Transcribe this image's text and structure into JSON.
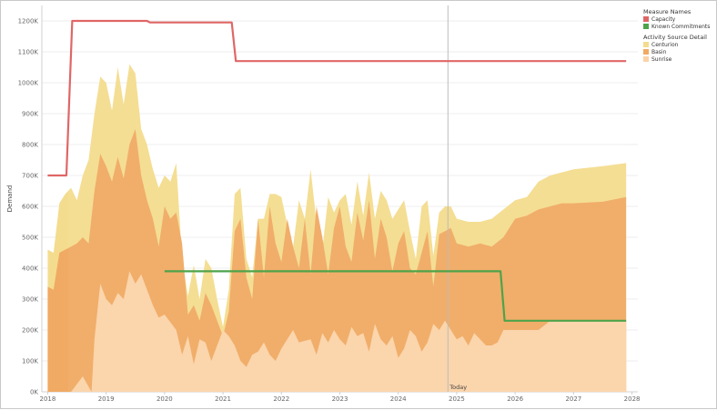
{
  "chart_data": {
    "type": "area",
    "ylabel": "Demand",
    "ylim": [
      0,
      1250000
    ],
    "xlim": [
      2017.9,
      2028.1
    ],
    "grid": true,
    "legend_position": "top-right",
    "y_ticks": [
      0,
      100000,
      200000,
      300000,
      400000,
      500000,
      600000,
      700000,
      800000,
      900000,
      1000000,
      1100000,
      1200000
    ],
    "y_tick_labels": [
      "0K",
      "100K",
      "200K",
      "300K",
      "400K",
      "500K",
      "600K",
      "700K",
      "800K",
      "900K",
      "1000K",
      "1100K",
      "1200K"
    ],
    "x_ticks": [
      2018,
      2019,
      2020,
      2021,
      2022,
      2023,
      2024,
      2025,
      2026,
      2027,
      2028
    ],
    "x_tick_labels": [
      "2018",
      "2019",
      "2020",
      "2021",
      "2022",
      "2023",
      "2024",
      "2025",
      "2026",
      "2027",
      "2028"
    ],
    "today": {
      "x": 2024.85,
      "label": "Today"
    },
    "legend": {
      "measure_names_title": "Measure Names",
      "measure_names": [
        {
          "name": "Capacity",
          "color": "#e06666"
        },
        {
          "name": "Known Commitments",
          "color": "#4ea34a"
        }
      ],
      "activity_title": "Activity Source Detail",
      "activity": [
        {
          "name": "Centurion",
          "color": "#f4dc8e"
        },
        {
          "name": "Basin",
          "color": "#f0aa63"
        },
        {
          "name": "Sunrise",
          "color": "#fbd3a8"
        }
      ]
    },
    "area_series": [
      {
        "name": "Sunrise",
        "color": "#fbd3a8",
        "x": [
          2018.0,
          2018.4,
          2018.6,
          2018.75,
          2018.8,
          2018.9,
          2019.0,
          2019.1,
          2019.2,
          2019.3,
          2019.4,
          2019.5,
          2019.6,
          2019.7,
          2019.8,
          2019.9,
          2020.0,
          2020.2,
          2020.3,
          2020.4,
          2020.5,
          2020.6,
          2020.7,
          2020.8,
          2020.9,
          2021.0,
          2021.1,
          2021.2,
          2021.3,
          2021.4,
          2021.5,
          2021.6,
          2021.7,
          2021.8,
          2021.9,
          2022.0,
          2022.2,
          2022.3,
          2022.5,
          2022.6,
          2022.7,
          2022.8,
          2022.9,
          2023.0,
          2023.1,
          2023.2,
          2023.3,
          2023.4,
          2023.5,
          2023.6,
          2023.7,
          2023.8,
          2023.9,
          2024.0,
          2024.1,
          2024.2,
          2024.3,
          2024.4,
          2024.5,
          2024.6,
          2024.7,
          2024.8,
          2024.9,
          2025.0,
          2025.1,
          2025.2,
          2025.3,
          2025.5,
          2025.6,
          2025.7,
          2025.8,
          2026.0,
          2026.2,
          2026.4,
          2026.6,
          2026.8,
          2027.0,
          2027.5,
          2027.9
        ],
        "y": [
          0,
          0,
          50,
          0,
          170,
          350,
          300,
          280,
          320,
          300,
          390,
          350,
          380,
          330,
          280,
          240,
          250,
          200,
          120,
          180,
          90,
          170,
          160,
          100,
          150,
          200,
          180,
          150,
          100,
          80,
          120,
          130,
          160,
          120,
          100,
          140,
          200,
          160,
          170,
          120,
          190,
          160,
          200,
          170,
          150,
          210,
          180,
          190,
          130,
          220,
          170,
          150,
          180,
          110,
          140,
          200,
          180,
          130,
          160,
          220,
          200,
          230,
          200,
          170,
          180,
          150,
          190,
          150,
          150,
          160,
          200,
          200,
          200,
          200,
          230,
          230,
          230,
          230,
          230
        ]
      },
      {
        "name": "Basin",
        "color": "#f0aa63",
        "x": [
          2018.0,
          2018.1,
          2018.2,
          2018.3,
          2018.4,
          2018.5,
          2018.6,
          2018.7,
          2018.8,
          2018.9,
          2019.0,
          2019.1,
          2019.2,
          2019.3,
          2019.4,
          2019.5,
          2019.6,
          2019.7,
          2019.8,
          2019.9,
          2020.0,
          2020.1,
          2020.2,
          2020.3,
          2020.4,
          2020.5,
          2020.6,
          2020.7,
          2020.8,
          2020.9,
          2021.0,
          2021.1,
          2021.2,
          2021.3,
          2021.4,
          2021.5,
          2021.6,
          2021.7,
          2021.8,
          2021.9,
          2022.0,
          2022.1,
          2022.2,
          2022.3,
          2022.4,
          2022.5,
          2022.6,
          2022.7,
          2022.8,
          2022.9,
          2023.0,
          2023.1,
          2023.2,
          2023.3,
          2023.4,
          2023.5,
          2023.6,
          2023.7,
          2023.8,
          2023.9,
          2024.0,
          2024.1,
          2024.2,
          2024.3,
          2024.4,
          2024.5,
          2024.6,
          2024.7,
          2024.8,
          2024.9,
          2025.0,
          2025.2,
          2025.4,
          2025.6,
          2025.8,
          2026.0,
          2026.2,
          2026.4,
          2026.6,
          2026.8,
          2027.0,
          2027.5,
          2027.9
        ],
        "y": [
          340,
          330,
          450,
          460,
          470,
          480,
          500,
          480,
          650,
          770,
          730,
          680,
          760,
          690,
          800,
          850,
          700,
          620,
          560,
          470,
          600,
          560,
          580,
          480,
          250,
          280,
          230,
          320,
          280,
          230,
          180,
          260,
          520,
          560,
          370,
          300,
          560,
          370,
          600,
          480,
          420,
          560,
          470,
          400,
          560,
          380,
          600,
          500,
          380,
          530,
          600,
          470,
          420,
          580,
          490,
          620,
          430,
          560,
          500,
          390,
          480,
          520,
          400,
          380,
          450,
          520,
          340,
          510,
          520,
          530,
          480,
          470,
          480,
          470,
          500,
          560,
          570,
          590,
          600,
          610,
          610,
          615,
          630
        ]
      },
      {
        "name": "Centurion",
        "color": "#f4dc8e",
        "x": [
          2018.0,
          2018.1,
          2018.2,
          2018.3,
          2018.4,
          2018.5,
          2018.6,
          2018.7,
          2018.8,
          2018.9,
          2019.0,
          2019.1,
          2019.2,
          2019.3,
          2019.4,
          2019.5,
          2019.6,
          2019.7,
          2019.8,
          2019.9,
          2020.0,
          2020.1,
          2020.2,
          2020.3,
          2020.4,
          2020.5,
          2020.6,
          2020.7,
          2020.8,
          2020.9,
          2021.0,
          2021.1,
          2021.2,
          2021.3,
          2021.4,
          2021.5,
          2021.6,
          2021.7,
          2021.8,
          2021.9,
          2022.0,
          2022.1,
          2022.2,
          2022.3,
          2022.4,
          2022.5,
          2022.6,
          2022.7,
          2022.8,
          2022.9,
          2023.0,
          2023.1,
          2023.2,
          2023.3,
          2023.4,
          2023.5,
          2023.6,
          2023.7,
          2023.8,
          2023.9,
          2024.0,
          2024.1,
          2024.2,
          2024.3,
          2024.4,
          2024.5,
          2024.6,
          2024.7,
          2024.8,
          2024.9,
          2025.0,
          2025.2,
          2025.4,
          2025.6,
          2025.8,
          2026.0,
          2026.2,
          2026.4,
          2026.6,
          2026.8,
          2027.0,
          2027.5,
          2027.9
        ],
        "y": [
          460,
          450,
          610,
          640,
          660,
          620,
          700,
          750,
          900,
          1020,
          1000,
          910,
          1050,
          930,
          1060,
          1030,
          850,
          800,
          720,
          660,
          700,
          680,
          740,
          430,
          310,
          410,
          300,
          430,
          400,
          300,
          210,
          330,
          640,
          660,
          430,
          370,
          560,
          560,
          640,
          640,
          630,
          540,
          470,
          620,
          560,
          720,
          550,
          460,
          630,
          580,
          620,
          640,
          540,
          680,
          570,
          710,
          560,
          650,
          620,
          560,
          590,
          620,
          520,
          430,
          600,
          620,
          440,
          580,
          600,
          600,
          560,
          550,
          550,
          560,
          590,
          620,
          630,
          680,
          700,
          710,
          720,
          730,
          740
        ]
      }
    ],
    "line_series": [
      {
        "name": "Capacity",
        "color": "#e06666",
        "x": [
          2018.0,
          2018.32,
          2018.42,
          2019.7,
          2019.75,
          2021.15,
          2021.22,
          2027.9
        ],
        "y": [
          700,
          700,
          1200,
          1200,
          1195,
          1195,
          1070,
          1070
        ]
      },
      {
        "name": "Known Commitments",
        "color": "#4ea34a",
        "x": [
          2020.0,
          2025.75,
          2025.82,
          2027.9
        ],
        "y": [
          390,
          390,
          230,
          230
        ]
      }
    ]
  }
}
